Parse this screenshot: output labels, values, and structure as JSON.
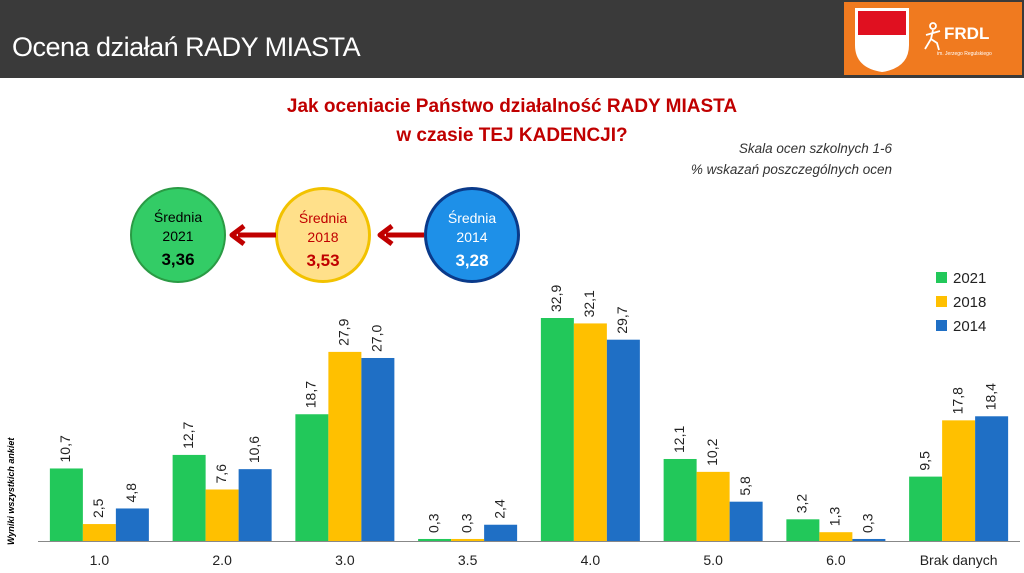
{
  "header": {
    "title": "Ocena działań RADY MIASTA"
  },
  "logo": {
    "text": "FRDL",
    "subtext": "im. Jerzego Regulskiego",
    "bg_color": "#f07a1f"
  },
  "question": {
    "line1": "Jak oceniacie Państwo działalność RADY MIASTA",
    "line2": "w czasie TEJ KADENCJI?"
  },
  "note": {
    "line1": "Skala ocen szkolnych 1-6",
    "line2": "% wskazań poszczególnych ocen"
  },
  "averages": [
    {
      "label": "Średnia",
      "year": "2021",
      "value": "3,36"
    },
    {
      "label": "Średnia",
      "year": "2018",
      "value": "3,53"
    },
    {
      "label": "Średnia",
      "year": "2014",
      "value": "3,28"
    }
  ],
  "side_label": "Wyniki wszystkich ankiet",
  "chart_data": {
    "type": "bar",
    "categories": [
      "1.0",
      "2.0",
      "3.0",
      "3.5",
      "4.0",
      "5.0",
      "6.0",
      "Brak danych"
    ],
    "series": [
      {
        "name": "2021",
        "color": "#22c85a",
        "values": [
          10.7,
          12.7,
          18.7,
          0.3,
          32.9,
          12.1,
          3.2,
          9.5
        ],
        "labels": [
          "10,7",
          "12,7",
          "18,7",
          "0,3",
          "32,9",
          "12,1",
          "3,2",
          "9,5"
        ]
      },
      {
        "name": "2018",
        "color": "#ffc000",
        "values": [
          2.5,
          7.6,
          27.9,
          0.3,
          32.1,
          10.2,
          1.3,
          17.8
        ],
        "labels": [
          "2,5",
          "7,6",
          "27,9",
          "0,3",
          "32,1",
          "10,2",
          "1,3",
          "17,8"
        ]
      },
      {
        "name": "2014",
        "color": "#1f6fc5",
        "values": [
          4.8,
          10.6,
          27.0,
          2.4,
          29.7,
          5.8,
          0.3,
          18.4
        ],
        "labels": [
          "4,8",
          "10,6",
          "27,0",
          "2,4",
          "29,7",
          "5,8",
          "0,3",
          "18,4"
        ]
      }
    ],
    "ylim": [
      0,
      33
    ],
    "legend_position": "right",
    "grid": false
  }
}
